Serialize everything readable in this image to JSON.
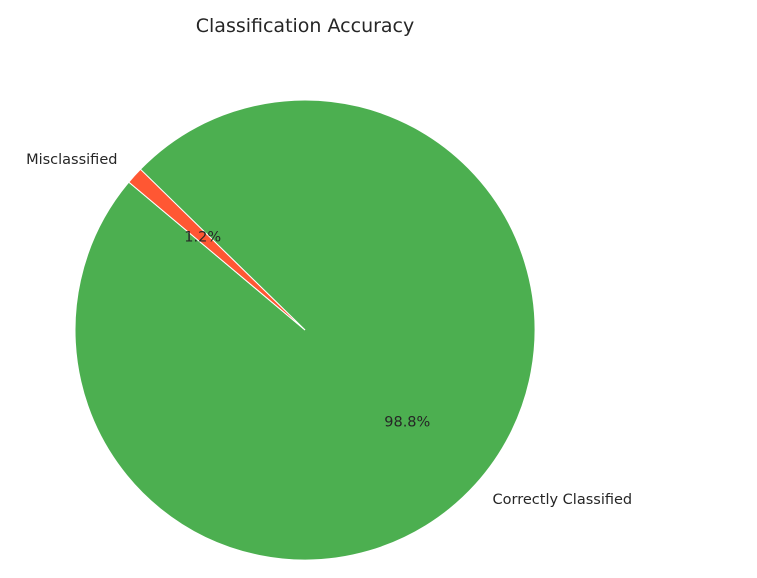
{
  "chart_data": {
    "type": "pie",
    "title": "Classification Accuracy",
    "slices": [
      {
        "label": "Correctly Classified",
        "value": 98.8,
        "pct_label": "98.8%",
        "color": "#4caf50"
      },
      {
        "label": "Misclassified",
        "value": 1.2,
        "pct_label": "1.2%",
        "color": "#ff5733"
      }
    ],
    "start_angle_deg": 140,
    "direction": "counterclockwise",
    "edge_color": "#ffffff"
  }
}
